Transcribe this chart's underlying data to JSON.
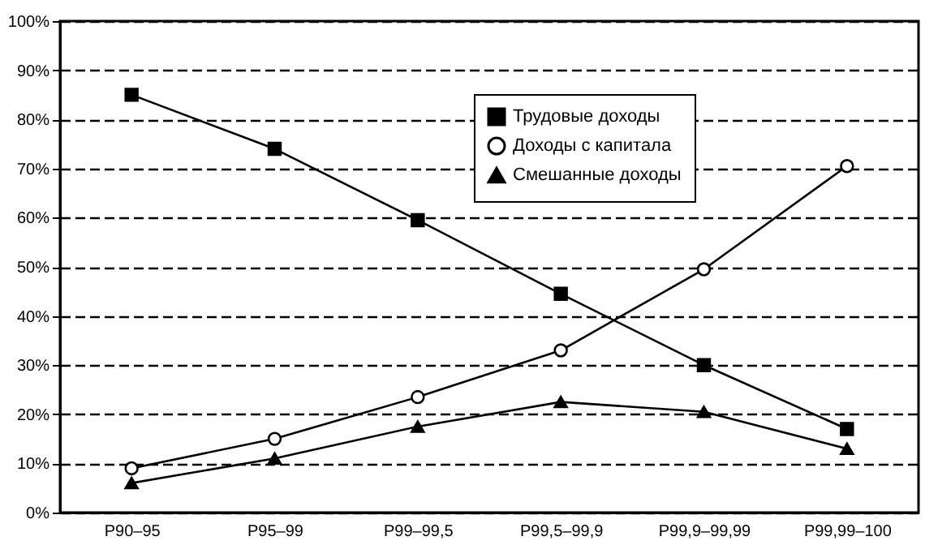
{
  "chart_data": {
    "type": "line",
    "categories": [
      "P90–95",
      "P95–99",
      "P99–99,5",
      "P99,5–99,9",
      "P99,9–99,99",
      "P99,99–100"
    ],
    "series": [
      {
        "name": "Трудовые доходы",
        "color": "#000000",
        "marker": "square",
        "values": [
          85,
          74,
          59.5,
          44.5,
          30,
          17
        ]
      },
      {
        "name": "Доходы с капитала",
        "color": "#000000",
        "marker": "circle",
        "values": [
          9,
          15,
          23.5,
          33,
          49.5,
          70.5
        ]
      },
      {
        "name": "Смешанные доходы",
        "color": "#000000",
        "marker": "triangle",
        "values": [
          6,
          11,
          17.5,
          22.5,
          20.5,
          13
        ]
      }
    ],
    "ylim": [
      0,
      100
    ],
    "yticks": [
      {
        "value": 0,
        "label": "0%"
      },
      {
        "value": 10,
        "label": "10%"
      },
      {
        "value": 20,
        "label": "20%"
      },
      {
        "value": 30,
        "label": "30%"
      },
      {
        "value": 40,
        "label": "40%"
      },
      {
        "value": 50,
        "label": "50%"
      },
      {
        "value": 60,
        "label": "60%"
      },
      {
        "value": 70,
        "label": "70%"
      },
      {
        "value": 80,
        "label": "80%"
      },
      {
        "value": 90,
        "label": "90%"
      },
      {
        "value": 100,
        "label": "100%"
      }
    ],
    "grid": "y",
    "legend": "top right",
    "line_style": "solid"
  }
}
